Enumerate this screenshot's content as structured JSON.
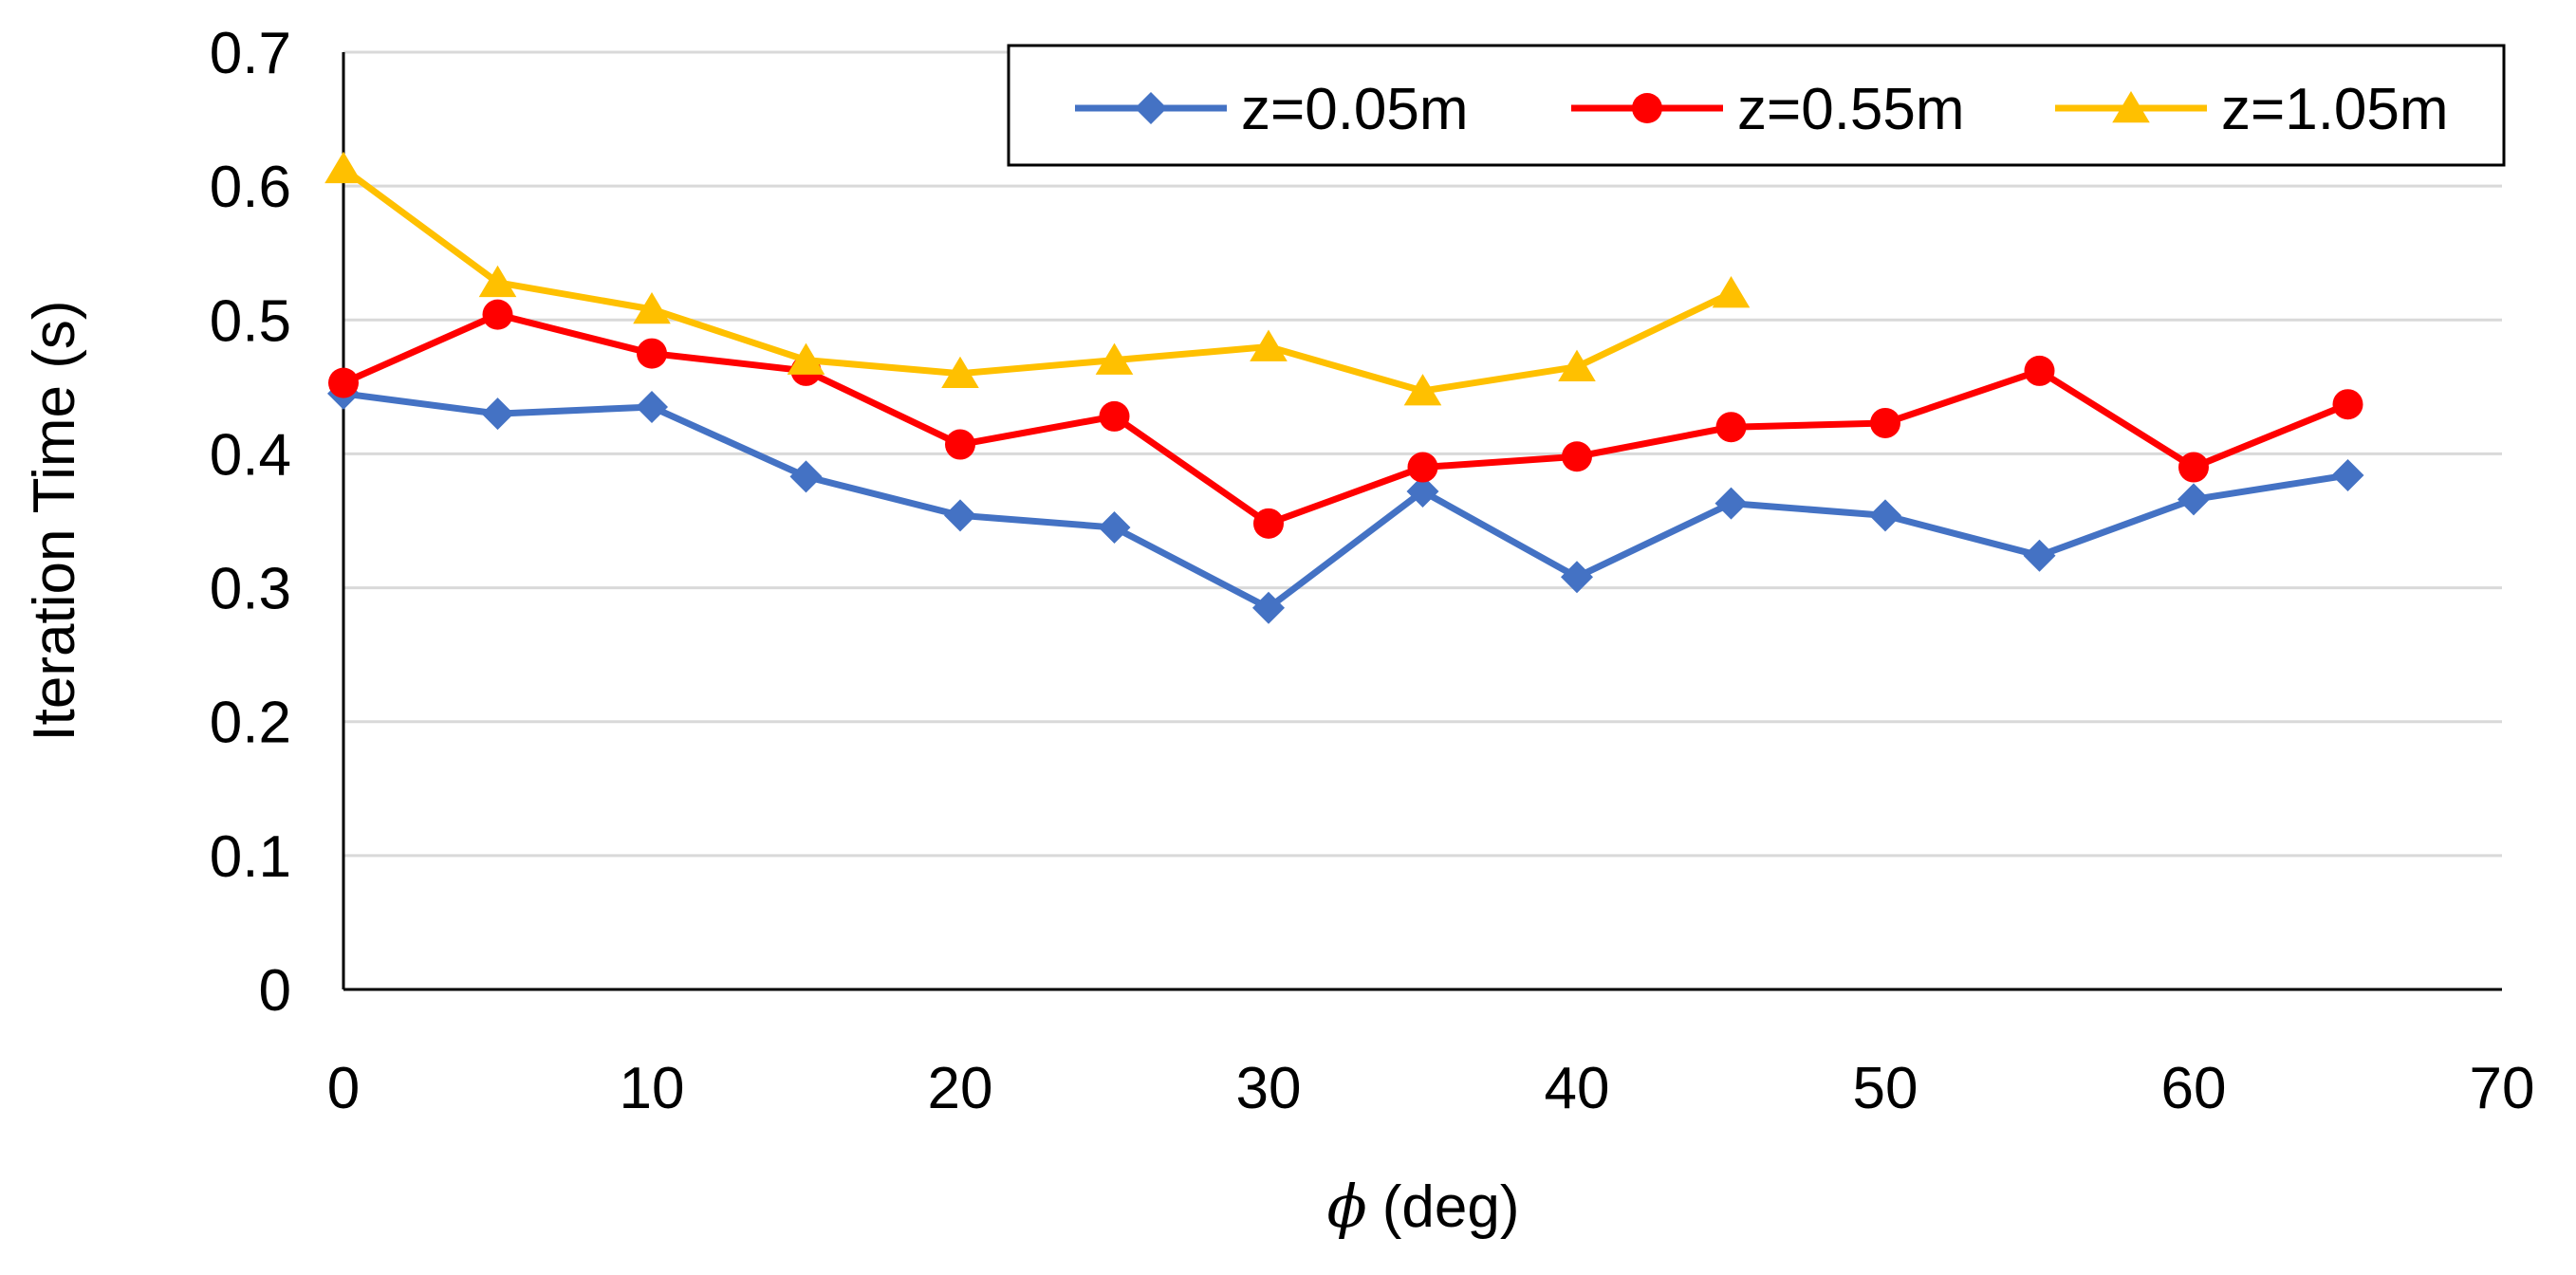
{
  "chart_data": {
    "type": "line",
    "title": "",
    "xlabel_symbol": "ϕ",
    "xlabel_unit": "(deg)",
    "ylabel": "Iteration Time (s)",
    "xlim": [
      0,
      70
    ],
    "ylim": [
      0,
      0.7
    ],
    "x_ticks": [
      "0",
      "10",
      "20",
      "30",
      "40",
      "50",
      "60",
      "70"
    ],
    "y_ticks": [
      "0",
      "0.1",
      "0.2",
      "0.3",
      "0.4",
      "0.5",
      "0.6",
      "0.7"
    ],
    "grid": "horizontal",
    "legend_position": "top-right",
    "series": [
      {
        "name": "z=0.05m",
        "color": "#4472C4",
        "marker": "diamond",
        "x": [
          0,
          5,
          10,
          15,
          20,
          25,
          30,
          35,
          40,
          45,
          50,
          55,
          60,
          65
        ],
        "values": [
          0.445,
          0.43,
          0.435,
          0.383,
          0.354,
          0.345,
          0.285,
          0.372,
          0.308,
          0.363,
          0.354,
          0.324,
          0.366,
          0.384
        ]
      },
      {
        "name": "z=0.55m",
        "color": "#FF0000",
        "marker": "circle",
        "x": [
          0,
          5,
          10,
          15,
          20,
          25,
          30,
          35,
          40,
          45,
          50,
          55,
          60,
          65
        ],
        "values": [
          0.453,
          0.504,
          0.475,
          0.462,
          0.407,
          0.428,
          0.348,
          0.39,
          0.398,
          0.42,
          0.423,
          0.462,
          0.39,
          0.437
        ]
      },
      {
        "name": "z=1.05m",
        "color": "#FFC000",
        "marker": "triangle",
        "x": [
          0,
          5,
          10,
          15,
          20,
          25,
          30,
          35,
          40,
          45
        ],
        "values": [
          0.613,
          0.528,
          0.508,
          0.47,
          0.46,
          0.47,
          0.48,
          0.447,
          0.465,
          0.52
        ]
      }
    ]
  }
}
